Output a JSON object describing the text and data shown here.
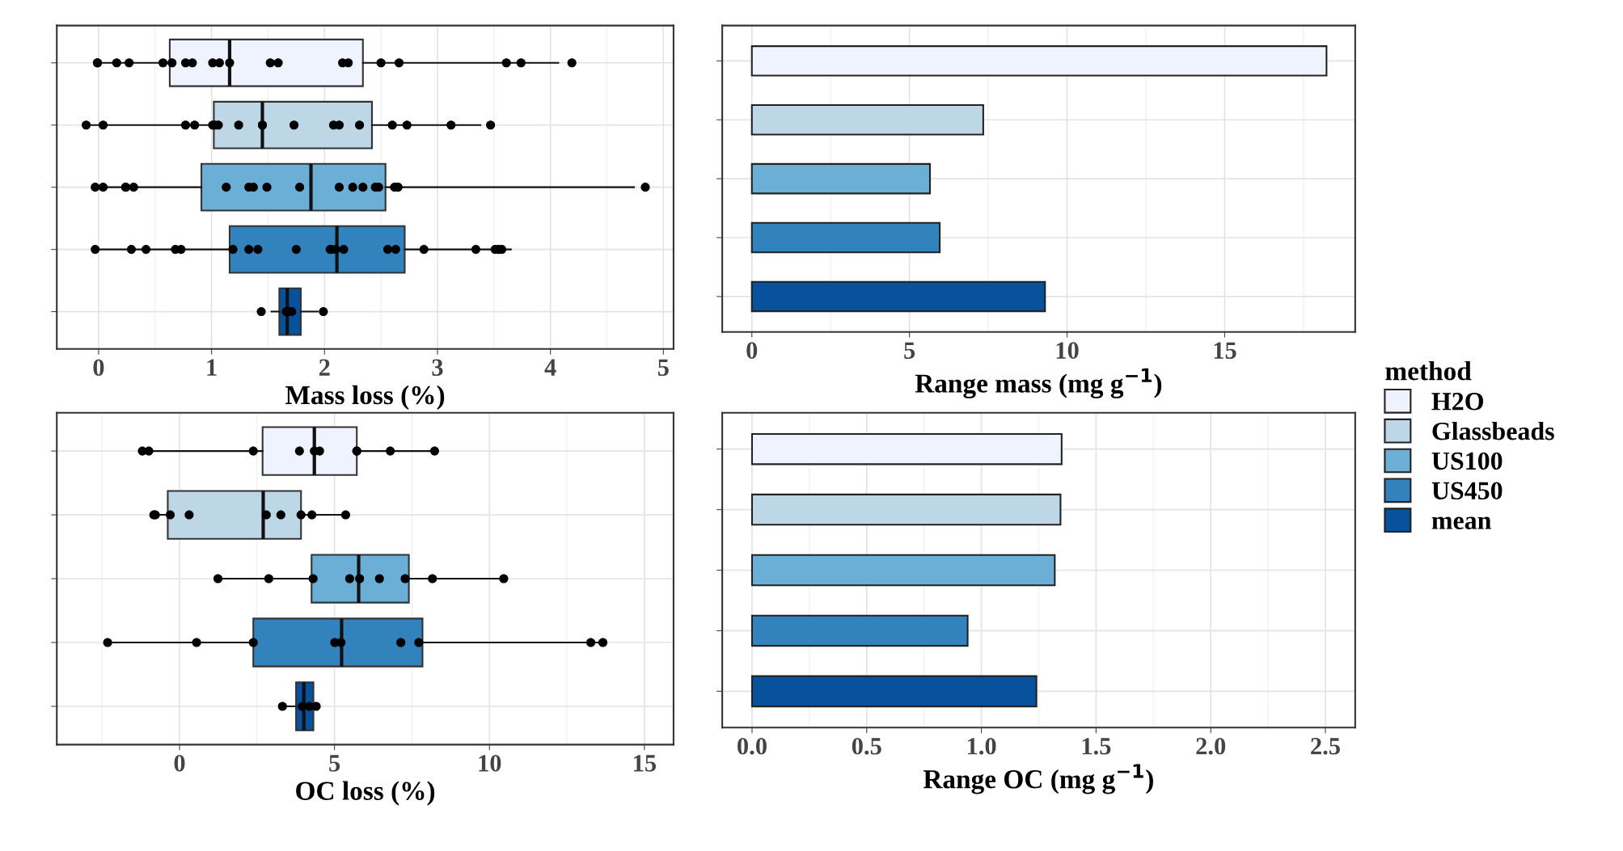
{
  "chart_data": [
    {
      "type": "box",
      "orientation": "horizontal",
      "xlabel": "Mass loss (%)",
      "categories": [
        null,
        null,
        null,
        null,
        null
      ],
      "colors": [
        "#eff3ff",
        "#bdd7e7",
        "#6baed6",
        "#3182bd",
        "#08519c"
      ],
      "xlim": [
        -0.37,
        5.09
      ],
      "xticks": [
        0,
        1,
        2,
        3,
        4,
        5
      ],
      "grid": true,
      "tick_labels": "x",
      "boxes": [
        {
          "low": 0.0,
          "q1": 0.63,
          "median": 1.16,
          "q3": 2.34,
          "high": 4.07,
          "outliers": [
            -0.01,
            -0.01,
            0.16,
            0.27,
            0.57,
            0.65,
            0.77,
            0.83,
            1.01,
            1.07,
            1.16,
            1.52,
            1.59,
            2.16,
            2.21,
            2.5,
            2.66,
            3.61,
            3.74,
            4.19
          ]
        },
        {
          "low": -0.11,
          "q1": 1.02,
          "median": 1.45,
          "q3": 2.42,
          "high": 3.38,
          "outliers": [
            -0.11,
            0.04,
            0.77,
            0.85,
            1.01,
            1.03,
            1.06,
            1.24,
            1.45,
            1.45,
            1.73,
            2.08,
            2.13,
            2.31,
            2.6,
            2.73,
            3.12,
            3.47
          ]
        },
        {
          "low": -0.01,
          "q1": 0.91,
          "median": 1.88,
          "q3": 2.54,
          "high": 4.74,
          "outliers": [
            -0.03,
            0.04,
            0.24,
            0.24,
            0.31,
            1.13,
            1.33,
            1.37,
            1.49,
            1.78,
            2.13,
            2.25,
            2.34,
            2.45,
            2.48,
            2.62,
            2.65,
            2.65,
            4.84
          ]
        },
        {
          "low": -0.03,
          "q1": 1.16,
          "median": 2.11,
          "q3": 2.71,
          "high": 3.65,
          "outliers": [
            -0.03,
            0.29,
            0.42,
            0.68,
            0.73,
            1.19,
            1.33,
            1.41,
            1.75,
            2.05,
            2.06,
            2.1,
            2.17,
            2.56,
            2.63,
            2.88,
            3.34,
            3.51,
            3.54,
            3.57
          ]
        },
        {
          "low": 1.53,
          "q1": 1.6,
          "median": 1.67,
          "q3": 1.79,
          "high": 1.94,
          "outliers": [
            1.44,
            1.66,
            1.69,
            1.71,
            1.99
          ]
        }
      ]
    },
    {
      "type": "bar",
      "orientation": "horizontal",
      "xlabel": "Range mass (mg g$^{−1}$)",
      "categories": [
        null,
        null,
        null,
        null,
        null
      ],
      "xlim": [
        -0.94,
        19.14
      ],
      "xticks": [
        0,
        5,
        10,
        15
      ],
      "grid": true,
      "tick_labels": "x",
      "legend": "right",
      "legend_title": "method",
      "series": [
        {
          "name": "H2O",
          "color": "#eff3ff",
          "values": [
            18.23,
            null,
            null,
            null,
            null
          ]
        },
        {
          "name": "Glassbeads",
          "color": "#bdd7e7",
          "values": [
            null,
            7.34,
            null,
            null,
            null
          ]
        },
        {
          "name": "US100",
          "color": "#6baed6",
          "values": [
            null,
            null,
            5.65,
            null,
            null
          ]
        },
        {
          "name": "US450",
          "color": "#3182bd",
          "values": [
            null,
            null,
            null,
            5.96,
            null
          ]
        },
        {
          "name": "mean",
          "color": "#08519c",
          "values": [
            null,
            null,
            null,
            null,
            9.3
          ]
        }
      ]
    },
    {
      "type": "box",
      "orientation": "horizontal",
      "xlabel": "OC loss (%)",
      "categories": [
        null,
        null,
        null,
        null,
        null
      ],
      "colors": [
        "#eff3ff",
        "#bdd7e7",
        "#6baed6",
        "#3182bd",
        "#08519c"
      ],
      "xlim": [
        -3.96,
        15.94
      ],
      "xticks": [
        0,
        5,
        10,
        15
      ],
      "grid": true,
      "tick_labels": "x",
      "boxes": [
        {
          "low": -1.2,
          "q1": 2.68,
          "median": 4.35,
          "q3": 5.72,
          "high": 8.23,
          "outliers": [
            -1.2,
            -0.99,
            2.38,
            3.87,
            4.35,
            4.52,
            5.72,
            5.72,
            6.8,
            8.23
          ]
        },
        {
          "low": -0.79,
          "q1": -0.38,
          "median": 2.7,
          "q3": 3.92,
          "high": 5.22,
          "outliers": [
            -0.83,
            -0.78,
            -0.3,
            0.31,
            2.8,
            3.27,
            3.92,
            4.27,
            5.36
          ]
        },
        {
          "low": 1.18,
          "q1": 4.26,
          "median": 5.78,
          "q3": 7.4,
          "high": 10.52,
          "outliers": [
            1.24,
            2.88,
            4.31,
            5.49,
            5.81,
            6.45,
            7.28,
            8.16,
            10.46
          ]
        },
        {
          "low": -2.32,
          "q1": 2.38,
          "median": 5.23,
          "q3": 7.84,
          "high": 13.6,
          "outliers": [
            -2.32,
            0.55,
            2.38,
            5.01,
            5.21,
            7.14,
            7.72,
            13.27,
            13.66
          ]
        },
        {
          "low": 3.32,
          "q1": 3.76,
          "median": 4.01,
          "q3": 4.32,
          "high": 4.48,
          "outliers": [
            3.32,
            3.96,
            4.19,
            4.41
          ]
        }
      ]
    },
    {
      "type": "bar",
      "orientation": "horizontal",
      "xlabel": "Range OC (mg g$^{−1}$)",
      "categories": [
        null,
        null,
        null,
        null,
        null
      ],
      "colors": [
        "#eff3ff",
        "#bdd7e7",
        "#6baed6",
        "#3182bd",
        "#08519c"
      ],
      "values": [
        1.35,
        1.345,
        1.32,
        0.94,
        1.24
      ],
      "xlim": [
        -0.13,
        2.63
      ],
      "xticks": [
        {
          "value": 0,
          "label": "0.0"
        },
        0.5,
        {
          "value": 1,
          "label": "1.0"
        },
        1.5,
        {
          "value": 2,
          "label": "2.0"
        },
        2.5
      ],
      "grid": true,
      "tick_labels": "x"
    }
  ]
}
